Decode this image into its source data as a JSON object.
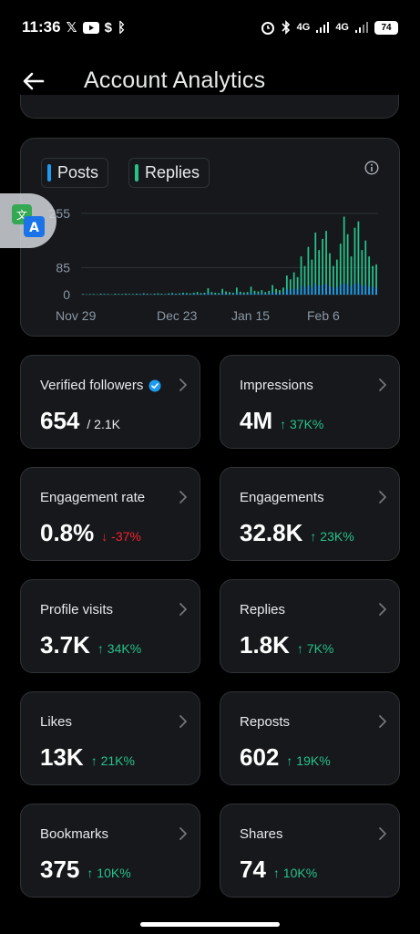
{
  "status_bar": {
    "time": "11:36",
    "left_icons": [
      "x-logo-icon",
      "youtube-icon",
      "app-icon",
      "app-icon"
    ],
    "network_1": "4G",
    "network_2": "4G",
    "battery": "74"
  },
  "header": {
    "title": "Account Analytics"
  },
  "colors": {
    "posts": "#1d9bf0",
    "replies": "#25c28a",
    "up": "#25c28a",
    "down": "#f4212e"
  },
  "chart_data": {
    "type": "bar",
    "legend": [
      "Posts",
      "Replies"
    ],
    "y_ticks": [
      "255",
      "85",
      "0"
    ],
    "x_ticks": [
      "Nov 29",
      "Dec 23",
      "Jan 15",
      "Feb 6"
    ],
    "ylim": [
      0,
      255
    ],
    "grid": true,
    "series": [
      {
        "name": "Replies",
        "values": [
          2,
          1,
          2,
          2,
          1,
          3,
          2,
          2,
          1,
          3,
          2,
          2,
          3,
          2,
          2,
          3,
          2,
          4,
          3,
          2,
          3,
          4,
          3,
          2,
          4,
          5,
          3,
          4,
          6,
          5,
          4,
          6,
          8,
          5,
          6,
          20,
          8,
          6,
          5,
          18,
          10,
          8,
          6,
          22,
          9,
          7,
          8,
          25,
          12,
          10,
          14,
          8,
          12,
          30,
          18,
          14,
          22,
          60,
          48,
          70,
          55,
          120,
          90,
          150,
          110,
          195,
          140,
          175,
          200,
          130,
          90,
          110,
          160,
          245,
          190,
          120,
          210,
          230,
          140,
          170,
          120,
          90,
          95
        ]
      },
      {
        "name": "Posts",
        "values": [
          1,
          0,
          1,
          1,
          0,
          1,
          1,
          1,
          0,
          1,
          1,
          1,
          1,
          1,
          1,
          1,
          1,
          2,
          1,
          1,
          1,
          2,
          1,
          1,
          2,
          2,
          1,
          2,
          3,
          2,
          2,
          3,
          3,
          2,
          3,
          6,
          3,
          2,
          2,
          5,
          4,
          3,
          2,
          6,
          3,
          3,
          3,
          7,
          4,
          3,
          5,
          3,
          4,
          8,
          6,
          5,
          7,
          18,
          14,
          20,
          16,
          28,
          22,
          30,
          24,
          34,
          28,
          30,
          33,
          26,
          22,
          24,
          30,
          36,
          32,
          26,
          34,
          35,
          28,
          30,
          26,
          22,
          24
        ]
      }
    ]
  },
  "stats": [
    {
      "label": "Verified followers",
      "value": "654",
      "sub": "/ 2.1K",
      "verified": true
    },
    {
      "label": "Impressions",
      "value": "4M",
      "delta": "↑ 37K%",
      "dir": "up"
    },
    {
      "label": "Engagement rate",
      "value": "0.8%",
      "delta": "↓ -37%",
      "dir": "down"
    },
    {
      "label": "Engagements",
      "value": "32.8K",
      "delta": "↑ 23K%",
      "dir": "up"
    },
    {
      "label": "Profile visits",
      "value": "3.7K",
      "delta": "↑ 34K%",
      "dir": "up"
    },
    {
      "label": "Replies",
      "value": "1.8K",
      "delta": "↑ 7K%",
      "dir": "up"
    },
    {
      "label": "Likes",
      "value": "13K",
      "delta": "↑ 21K%",
      "dir": "up"
    },
    {
      "label": "Reposts",
      "value": "602",
      "delta": "↑ 19K%",
      "dir": "up"
    },
    {
      "label": "Bookmarks",
      "value": "375",
      "delta": "↑ 10K%",
      "dir": "up"
    },
    {
      "label": "Shares",
      "value": "74",
      "delta": "↑ 10K%",
      "dir": "up"
    }
  ]
}
